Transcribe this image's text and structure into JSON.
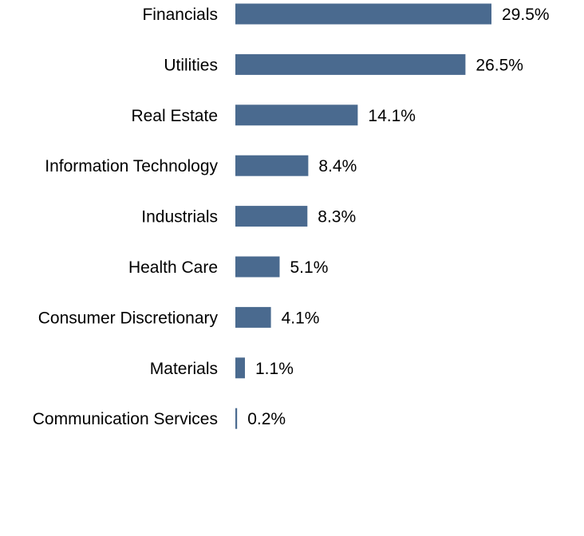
{
  "chart_data": {
    "type": "bar",
    "orientation": "horizontal",
    "title": "",
    "xlabel": "",
    "ylabel": "",
    "categories": [
      "Financials",
      "Utilities",
      "Real Estate",
      "Information Technology",
      "Industrials",
      "Health Care",
      "Consumer Discretionary",
      "Materials",
      "Communication Services"
    ],
    "values": [
      29.5,
      26.5,
      14.1,
      8.4,
      8.3,
      5.1,
      4.1,
      1.1,
      0.2
    ],
    "value_labels": [
      "29.5%",
      "26.5%",
      "14.1%",
      "8.4%",
      "8.3%",
      "5.1%",
      "4.1%",
      "1.1%",
      "0.2%"
    ],
    "xlim": [
      0,
      29.5
    ],
    "grid": false,
    "legend": "none",
    "bar_color": "#4a6a8f"
  }
}
